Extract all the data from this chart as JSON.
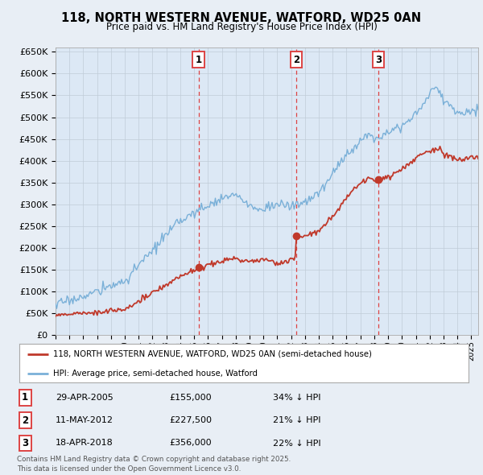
{
  "title": "118, NORTH WESTERN AVENUE, WATFORD, WD25 0AN",
  "subtitle": "Price paid vs. HM Land Registry's House Price Index (HPI)",
  "background_color": "#e8eef5",
  "plot_bg_color": "#dce8f5",
  "ylim": [
    0,
    660000
  ],
  "yticks": [
    0,
    50000,
    100000,
    150000,
    200000,
    250000,
    300000,
    350000,
    400000,
    450000,
    500000,
    550000,
    600000,
    650000
  ],
  "ytick_labels": [
    "£0",
    "£50K",
    "£100K",
    "£150K",
    "£200K",
    "£250K",
    "£300K",
    "£350K",
    "£400K",
    "£450K",
    "£500K",
    "£550K",
    "£600K",
    "£650K"
  ],
  "xlim_start": 1995.0,
  "xlim_end": 2025.5,
  "sale_dates": [
    2005.33,
    2012.37,
    2018.29
  ],
  "sale_prices": [
    155000,
    227500,
    356000
  ],
  "sale_labels": [
    "1",
    "2",
    "3"
  ],
  "sale_date_strs": [
    "29-APR-2005",
    "11-MAY-2012",
    "18-APR-2018"
  ],
  "sale_price_strs": [
    "£155,000",
    "£227,500",
    "£356,000"
  ],
  "sale_hpi_strs": [
    "34% ↓ HPI",
    "21% ↓ HPI",
    "22% ↓ HPI"
  ],
  "hpi_color": "#7ab0d8",
  "price_color": "#c0392b",
  "vline_color": "#dd4444",
  "grid_color": "#c0ccd8",
  "legend1_label": "118, NORTH WESTERN AVENUE, WATFORD, WD25 0AN (semi-detached house)",
  "legend2_label": "HPI: Average price, semi-detached house, Watford",
  "footer": "Contains HM Land Registry data © Crown copyright and database right 2025.\nThis data is licensed under the Open Government Licence v3.0."
}
